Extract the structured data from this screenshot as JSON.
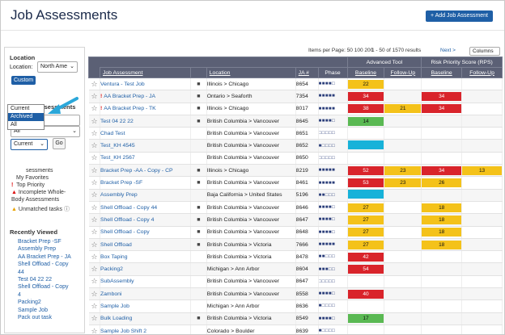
{
  "page": {
    "title": "Job Assessments",
    "add_button": "+ Add Job Assessment"
  },
  "sidebar": {
    "location_heading": "Location",
    "location_label": "Location:",
    "location_value": "North Ame",
    "custom_button": "Custom",
    "find_heading": "Find Job Assessments",
    "find_placeholder": "Find...",
    "filter_value": "All",
    "status_value": "Current",
    "go_button": "Go",
    "status_options": [
      "Current",
      "Archived",
      "All"
    ],
    "legend": {
      "assessments": "sessments",
      "favorites": "My Favorites",
      "top_priority": "Top Priority",
      "incomplete_a": "Incomplete Whole-",
      "incomplete_b": "Body Assessments",
      "unmatched": "Unmatched tasks"
    },
    "recently_viewed_heading": "Recently Viewed",
    "recently_viewed": [
      "Bracket Prep -SF",
      "Assembly Prep",
      "AA Bracket Prep - JA",
      "Shell Offload - Copy",
      "44",
      "Test 04 22 22",
      "Shell Offload - Copy",
      "4",
      "Packing2",
      "Sample Job",
      "Pack out task"
    ]
  },
  "toolbar": {
    "items_per_page": "Items per Page: 50 100 200",
    "range": "1 - 50 of 1570 results",
    "next": "Next >",
    "columns": "Columns"
  },
  "table": {
    "group_headers": {
      "advanced": "Advanced Tool",
      "rps": "Risk Priority Score (RPS)"
    },
    "headers": {
      "name": "Job Assessment",
      "location": "Location",
      "ja": "JA #",
      "phase": "Phase",
      "baseline": "Baseline",
      "followup": "Follow-Up"
    },
    "rows": [
      {
        "name": "Ventura - Test Job",
        "flag": "",
        "cam": true,
        "loc": "Illinois > Chicago",
        "ja": "8654",
        "phase": "■■■■□",
        "a1": "22",
        "a1c": "#f4c21a",
        "a2": "",
        "a2c": "",
        "r1": "",
        "r1c": "",
        "r2": "",
        "r2c": ""
      },
      {
        "name": "AA Bracket Prep - JA",
        "flag": "!",
        "cam": true,
        "loc": "Ontario > Seaforth",
        "ja": "7354",
        "phase": "■■■■■",
        "a1": "34",
        "a1c": "#d9242b",
        "a2": "",
        "a2c": "",
        "r1": "34",
        "r1c": "#d9242b",
        "r2": "",
        "r2c": ""
      },
      {
        "name": "AA Bracket Prep - TK",
        "flag": "!",
        "cam": true,
        "loc": "Illinois > Chicago",
        "ja": "8017",
        "phase": "■■■■■",
        "a1": "38",
        "a1c": "#d9242b",
        "a2": "21",
        "a2c": "#f4c21a",
        "r1": "34",
        "r1c": "#d9242b",
        "r2": "",
        "r2c": ""
      },
      {
        "name": "Test 04 22 22",
        "flag": "",
        "cam": true,
        "loc": "British Columbia > Vancouver",
        "ja": "8645",
        "phase": "■■■■□",
        "a1": "14",
        "a1c": "#5ab953",
        "a2": "",
        "a2c": "",
        "r1": "",
        "r1c": "",
        "r2": "",
        "r2c": ""
      },
      {
        "name": "Chad Test",
        "flag": "",
        "cam": false,
        "loc": "British Columbia > Vancouver",
        "ja": "8651",
        "phase": "□□□□□",
        "a1": "",
        "a1c": "",
        "a2": "",
        "a2c": "",
        "r1": "",
        "r1c": "",
        "r2": "",
        "r2c": ""
      },
      {
        "name": "Test_KH 4545",
        "flag": "",
        "cam": false,
        "loc": "British Columbia > Vancouver",
        "ja": "8652",
        "phase": "■□□□□",
        "a1": "",
        "a1c": "#17b2d9",
        "a2": "",
        "a2c": "",
        "r1": "",
        "r1c": "",
        "r2": "",
        "r2c": ""
      },
      {
        "name": "Test_KH 2567",
        "flag": "",
        "cam": false,
        "loc": "British Columbia > Vancouver",
        "ja": "8650",
        "phase": "□□□□□",
        "a1": "",
        "a1c": "",
        "a2": "",
        "a2c": "",
        "r1": "",
        "r1c": "",
        "r2": "",
        "r2c": ""
      },
      {
        "name": "Bracket Prep -AA - Copy - CP",
        "flag": "",
        "cam": true,
        "loc": "Illinois > Chicago",
        "ja": "8219",
        "phase": "■■■■■",
        "a1": "52",
        "a1c": "#d9242b",
        "a2": "23",
        "a2c": "#f4c21a",
        "r1": "34",
        "r1c": "#d9242b",
        "r2": "13",
        "r2c": "#f4c21a"
      },
      {
        "name": "Bracket Prep -SF",
        "flag": "",
        "cam": true,
        "loc": "British Columbia > Vancouver",
        "ja": "8461",
        "phase": "■■■■■",
        "a1": "53",
        "a1c": "#d9242b",
        "a2": "23",
        "a2c": "#f4c21a",
        "r1": "26",
        "r1c": "#f4c21a",
        "r2": "",
        "r2c": ""
      },
      {
        "name": "Assembly Prep",
        "flag": "",
        "cam": false,
        "loc": "Baja California > United States",
        "ja": "5196",
        "phase": "■■□□□",
        "a1": "",
        "a1c": "#17b2d9",
        "a2": "",
        "a2c": "",
        "r1": "",
        "r1c": "",
        "r2": "",
        "r2c": ""
      },
      {
        "name": "Shell Offload - Copy 44",
        "flag": "",
        "cam": true,
        "loc": "British Columbia > Vancouver",
        "ja": "8646",
        "phase": "■■■■□",
        "a1": "27",
        "a1c": "#f4c21a",
        "a2": "",
        "a2c": "",
        "r1": "18",
        "r1c": "#f4c21a",
        "r2": "",
        "r2c": ""
      },
      {
        "name": "Shell Offload - Copy 4",
        "flag": "",
        "cam": true,
        "loc": "British Columbia > Vancouver",
        "ja": "8647",
        "phase": "■■■■□",
        "a1": "27",
        "a1c": "#f4c21a",
        "a2": "",
        "a2c": "",
        "r1": "18",
        "r1c": "#f4c21a",
        "r2": "",
        "r2c": ""
      },
      {
        "name": "Shell Offload - Copy",
        "flag": "",
        "cam": true,
        "loc": "British Columbia > Vancouver",
        "ja": "8648",
        "phase": "■■■■□",
        "a1": "27",
        "a1c": "#f4c21a",
        "a2": "",
        "a2c": "",
        "r1": "18",
        "r1c": "#f4c21a",
        "r2": "",
        "r2c": ""
      },
      {
        "name": "Shell Offload",
        "flag": "",
        "cam": true,
        "loc": "British Columbia > Victoria",
        "ja": "7666",
        "phase": "■■■■■",
        "a1": "27",
        "a1c": "#f4c21a",
        "a2": "",
        "a2c": "",
        "r1": "18",
        "r1c": "#f4c21a",
        "r2": "",
        "r2c": ""
      },
      {
        "name": "Box Taping",
        "flag": "",
        "cam": false,
        "loc": "British Columbia > Victoria",
        "ja": "8478",
        "phase": "■■□□□",
        "a1": "42",
        "a1c": "#d9242b",
        "a2": "",
        "a2c": "",
        "r1": "",
        "r1c": "",
        "r2": "",
        "r2c": ""
      },
      {
        "name": "Packing2",
        "flag": "",
        "cam": false,
        "loc": "Michigan > Ann Arbor",
        "ja": "8604",
        "phase": "■■■□□",
        "a1": "54",
        "a1c": "#d9242b",
        "a2": "",
        "a2c": "",
        "r1": "",
        "r1c": "",
        "r2": "",
        "r2c": ""
      },
      {
        "name": "SubAssembly",
        "flag": "",
        "cam": false,
        "loc": "British Columbia > Vancouver",
        "ja": "8647",
        "phase": "□□□□□",
        "a1": "",
        "a1c": "",
        "a2": "",
        "a2c": "",
        "r1": "",
        "r1c": "",
        "r2": "",
        "r2c": ""
      },
      {
        "name": "Zamboni",
        "flag": "",
        "cam": false,
        "loc": "British Columbia > Vancouver",
        "ja": "8558",
        "phase": "■■■■□",
        "a1": "40",
        "a1c": "#d9242b",
        "a2": "",
        "a2c": "",
        "r1": "",
        "r1c": "",
        "r2": "",
        "r2c": ""
      },
      {
        "name": "Sample Job",
        "flag": "",
        "cam": false,
        "loc": "Michigan > Ann Arbor",
        "ja": "8636",
        "phase": "■□□□□",
        "a1": "",
        "a1c": "",
        "a2": "",
        "a2c": "",
        "r1": "",
        "r1c": "",
        "r2": "",
        "r2c": ""
      },
      {
        "name": "Bulk Loading",
        "flag": "",
        "cam": true,
        "loc": "British Columbia > Victoria",
        "ja": "8549",
        "phase": "■■■■□",
        "a1": "17",
        "a1c": "#5ab953",
        "a2": "",
        "a2c": "",
        "r1": "",
        "r1c": "",
        "r2": "",
        "r2c": ""
      },
      {
        "name": "Sample Job Shift 2",
        "flag": "",
        "cam": false,
        "loc": "Colorado > Boulder",
        "ja": "8639",
        "phase": "■□□□□",
        "a1": "",
        "a1c": "",
        "a2": "",
        "a2c": "",
        "r1": "",
        "r1c": "",
        "r2": "",
        "r2c": ""
      }
    ]
  }
}
